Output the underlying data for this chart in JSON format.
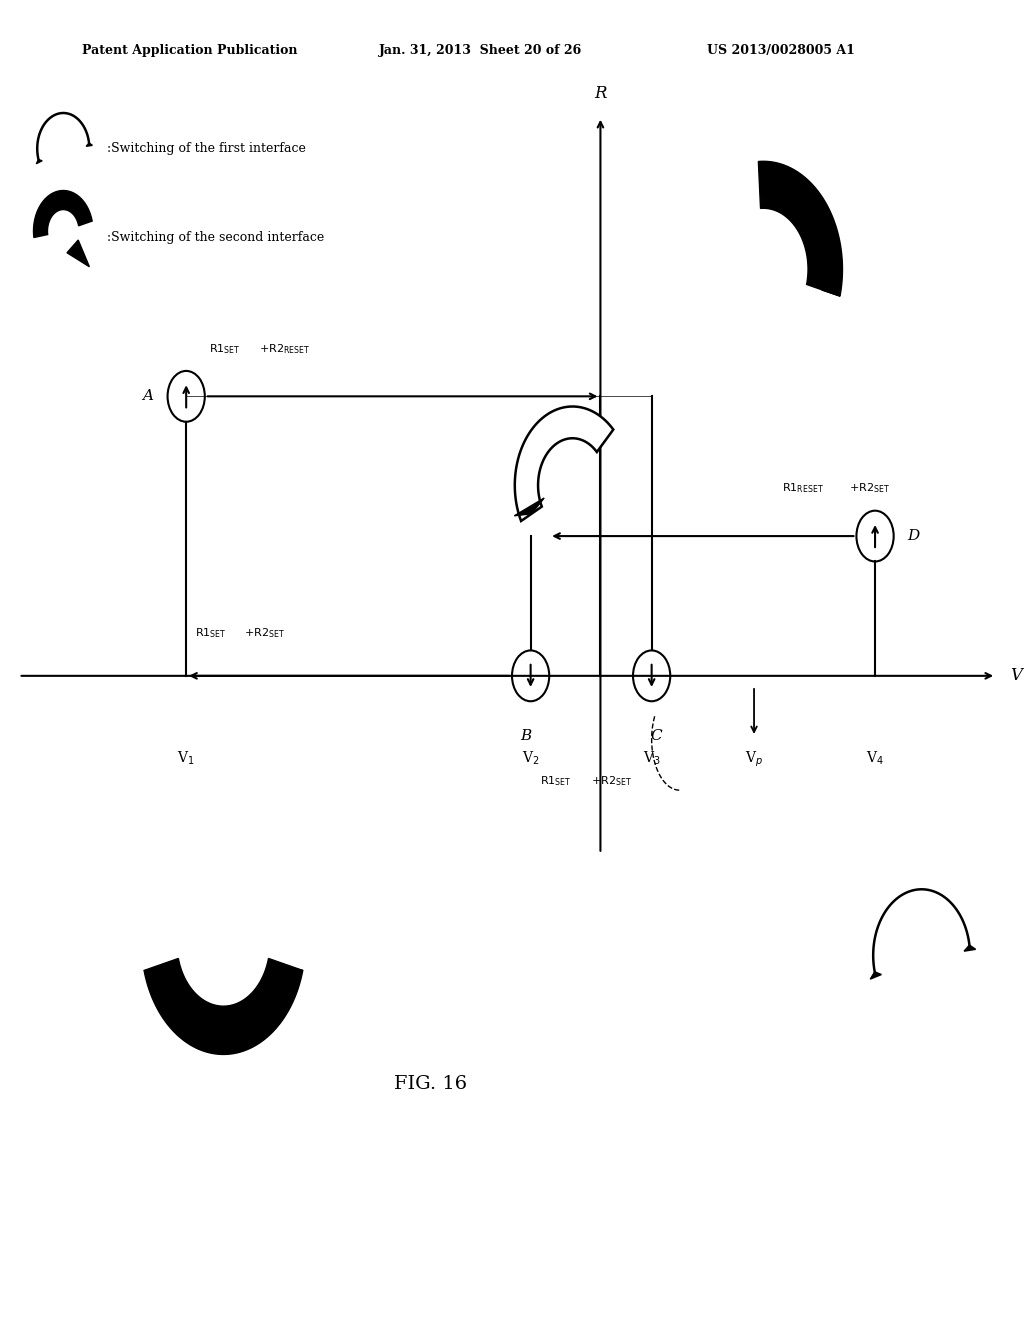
{
  "bg_color": "#ffffff",
  "header_left": "Patent Application Publication",
  "header_mid": "Jan. 31, 2013  Sheet 20 of 26",
  "header_right": "US 2013/0028005 A1",
  "figure_label": "FIG. 16",
  "legend1_text": ":Switching of the first interface",
  "legend2_text": ":Switching of the second interface",
  "pA": [
    -3.2,
    2.2
  ],
  "pB": [
    0.5,
    0.0
  ],
  "pC": [
    1.8,
    0.0
  ],
  "pD": [
    4.2,
    1.1
  ],
  "V1_x": -3.2,
  "V2_x": 0.5,
  "V3_x": 1.8,
  "VP_x": 2.9,
  "V4_x": 4.2,
  "R_axis_x": 1.25,
  "xmin": -5.2,
  "xmax": 5.8,
  "ymin": -3.2,
  "ymax": 4.8
}
